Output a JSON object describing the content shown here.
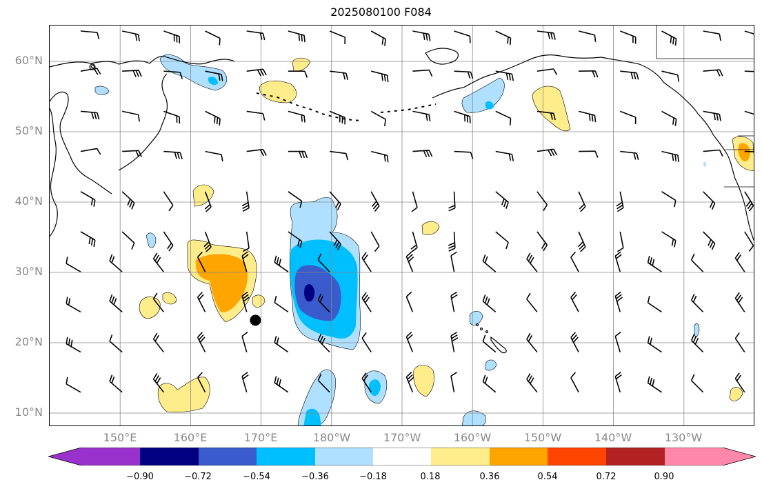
{
  "title": "2025080100 F084",
  "map": {
    "lat_labels": [
      "60°N",
      "50°N",
      "40°N",
      "30°N",
      "20°N",
      "10°N"
    ],
    "lon_labels": [
      "150°E",
      "160°E",
      "170°E",
      "180°W",
      "170°W",
      "160°W",
      "150°W",
      "140°W",
      "130°W"
    ],
    "marker": {
      "lat": 23.2,
      "lon": 169.2,
      "color": "#000000"
    }
  },
  "colorbar": {
    "tick_labels": [
      "−0.90",
      "−0.72",
      "−0.54",
      "−0.36",
      "−0.18",
      "0.18",
      "0.36",
      "0.54",
      "0.72",
      "0.90"
    ],
    "colors": [
      "#9932cc",
      "#000080",
      "#3a5bcc",
      "#00bfff",
      "#b0e0ff",
      "#ffffff",
      "#ffec8b",
      "#ffa500",
      "#ff4500",
      "#b22222",
      "#ff88aa"
    ]
  }
}
